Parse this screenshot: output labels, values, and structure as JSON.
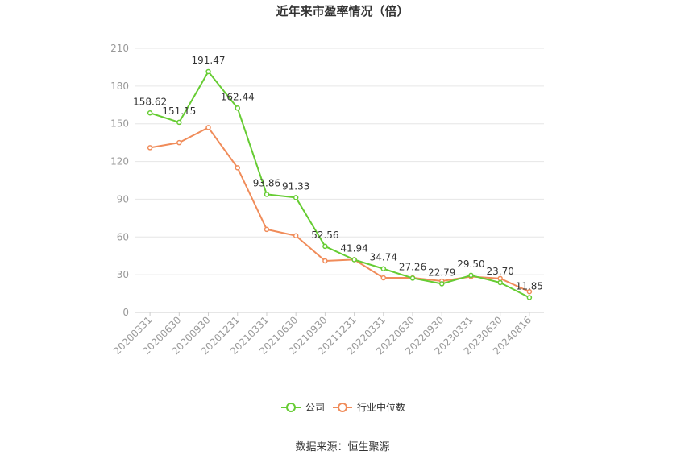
{
  "chart_data": {
    "type": "line",
    "title": "近年来市盈率情况（倍）",
    "categories": [
      "20200331",
      "20200630",
      "20200930",
      "20201231",
      "20210331",
      "20210630",
      "20210930",
      "20211231",
      "20220331",
      "20220630",
      "20220930",
      "20230331",
      "20230630",
      "20240816"
    ],
    "ylim": [
      0,
      210
    ],
    "yticks": [
      0,
      30,
      60,
      90,
      120,
      150,
      180,
      210
    ],
    "grid": true,
    "legend_position": "bottom",
    "series": [
      {
        "name": "公司",
        "color": "#66cc33",
        "values": [
          158.62,
          151.15,
          191.47,
          162.44,
          93.86,
          91.33,
          52.56,
          41.94,
          34.74,
          27.26,
          22.79,
          29.5,
          23.7,
          11.85
        ],
        "labels": [
          "158.62",
          "151.15",
          "191.47",
          "162.44",
          "93.86",
          "91.33",
          "52.56",
          "41.94",
          "34.74",
          "27.26",
          "22.79",
          "29.50",
          "23.70",
          "11.85"
        ]
      },
      {
        "name": "行业中位数",
        "color": "#f08c5a",
        "values": [
          131,
          135,
          147,
          115,
          66,
          61,
          41,
          42,
          27.5,
          27.5,
          25,
          28.5,
          27,
          16.5
        ]
      }
    ]
  },
  "source": "数据来源：恒生聚源"
}
